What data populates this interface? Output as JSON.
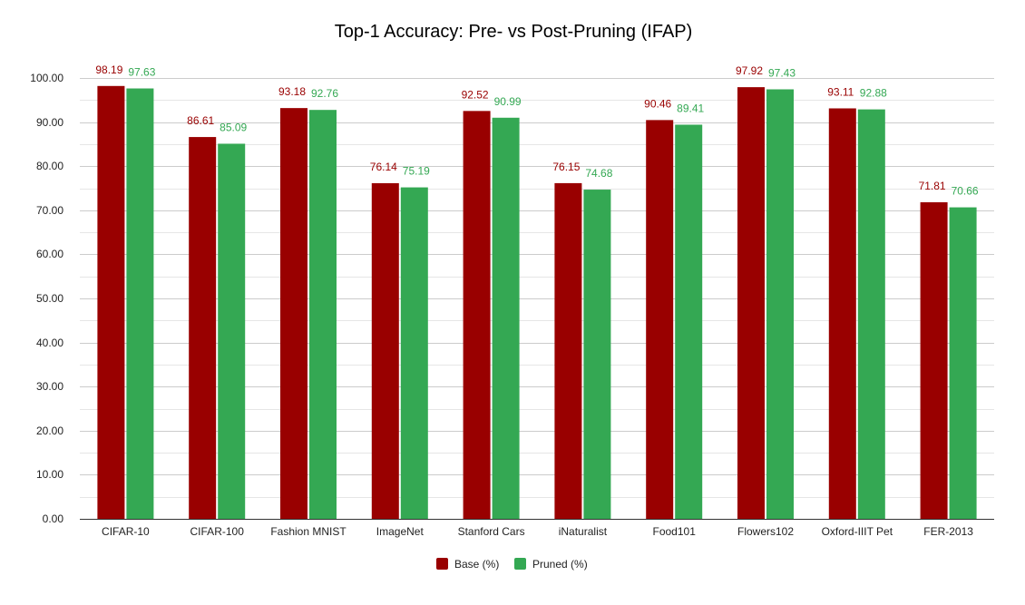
{
  "chart_data": {
    "type": "bar",
    "title": "Top-1 Accuracy: Pre- vs Post-Pruning (IFAP)",
    "xlabel": "",
    "ylabel": "",
    "ylim": [
      0,
      100
    ],
    "yticks": [
      "0.00",
      "10.00",
      "20.00",
      "30.00",
      "40.00",
      "50.00",
      "60.00",
      "70.00",
      "80.00",
      "90.00",
      "100.00"
    ],
    "grid": true,
    "legend_position": "bottom",
    "categories": [
      "CIFAR-10",
      "CIFAR-100",
      "Fashion MNIST",
      "ImageNet",
      "Stanford Cars",
      "iNaturalist",
      "Food101",
      "Flowers102",
      "Oxford-IIIT Pet",
      "FER-2013"
    ],
    "series": [
      {
        "name": "Base (%)",
        "color": "#990000",
        "values": [
          98.19,
          86.61,
          93.18,
          76.14,
          92.52,
          76.15,
          90.46,
          97.92,
          93.11,
          71.81
        ]
      },
      {
        "name": "Pruned (%)",
        "color": "#34a853",
        "values": [
          97.63,
          85.09,
          92.76,
          75.19,
          90.99,
          74.68,
          89.41,
          97.43,
          92.88,
          70.66
        ]
      }
    ]
  }
}
